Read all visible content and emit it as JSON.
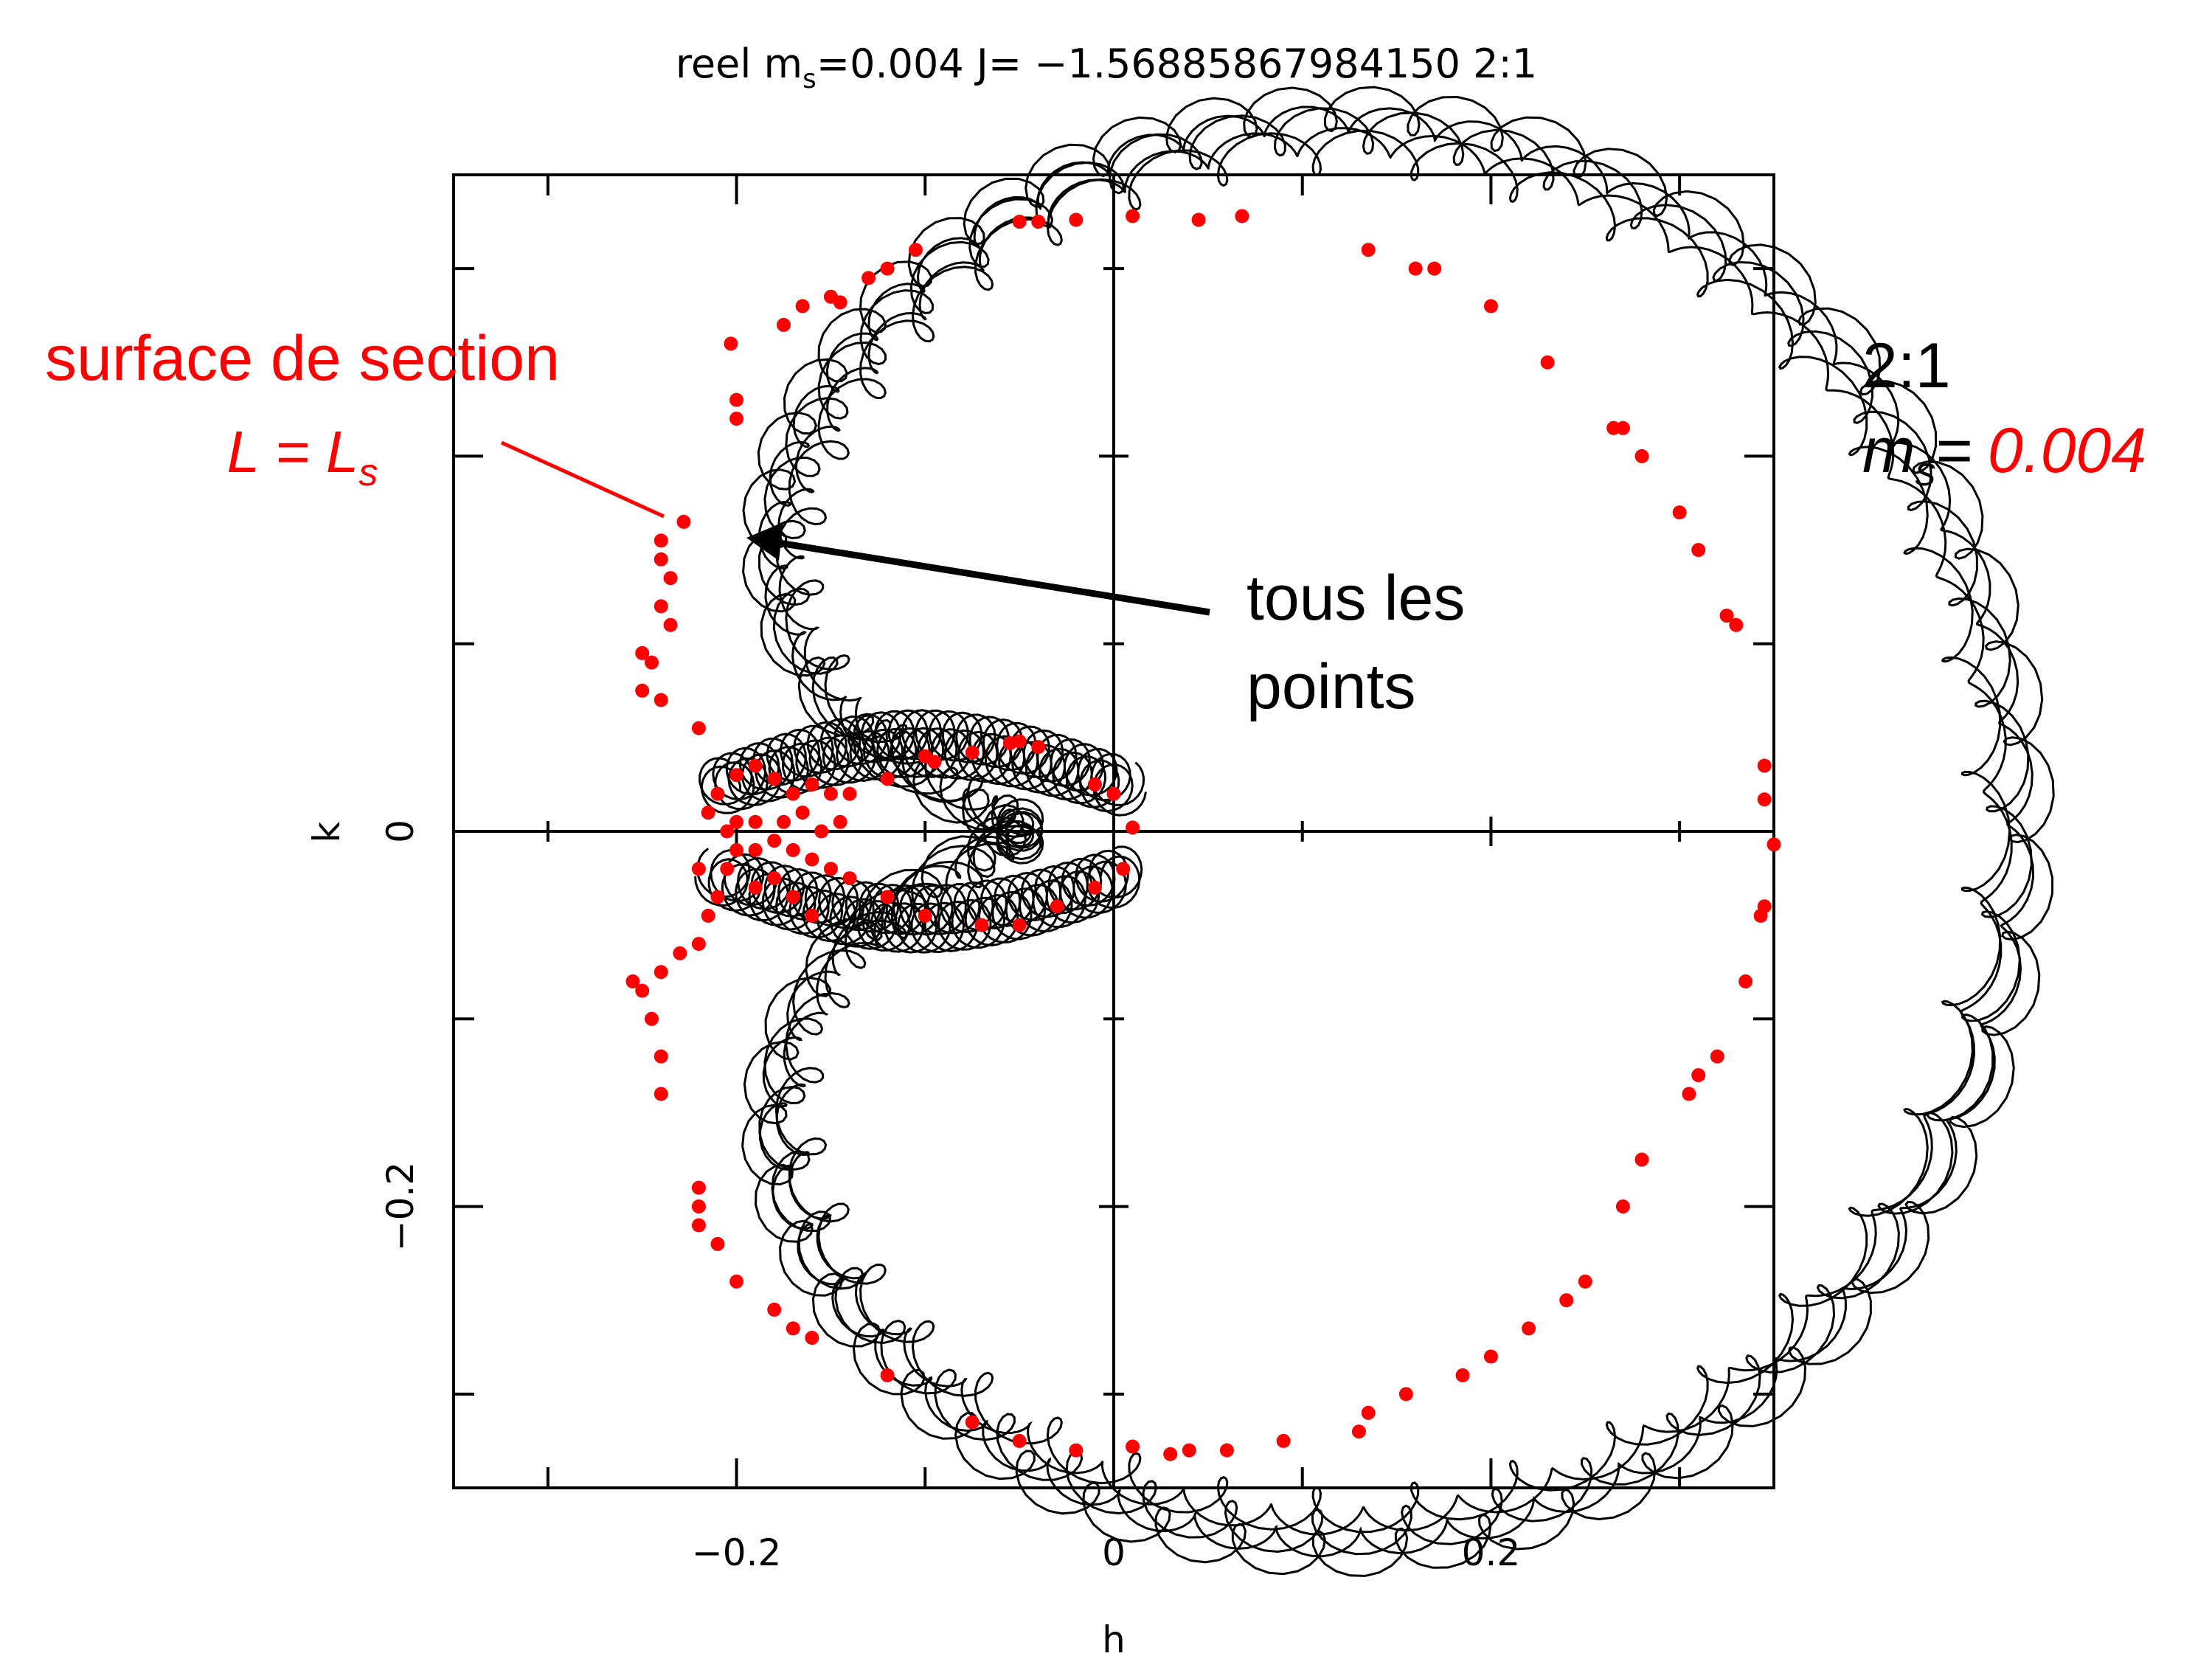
{
  "chart_data": {
    "type": "scatter",
    "title": "reel m_s=0.004 J= −1.56885867984150 2:1",
    "title_parts": {
      "prefix": "reel m",
      "sub": "s",
      "suffix": "=0.004 J= −1.56885867984150 2:1"
    },
    "xlabel": "h",
    "ylabel": "k",
    "xlim": [
      -0.35,
      0.35
    ],
    "ylim": [
      -0.35,
      0.35
    ],
    "x_ticks": [
      {
        "value": -0.2,
        "label": "−0.2"
      },
      {
        "value": 0,
        "label": "0"
      },
      {
        "value": 0.2,
        "label": "0.2"
      }
    ],
    "y_ticks": [
      {
        "value": -0.2,
        "label": "−0.2"
      },
      {
        "value": 0,
        "label": "0"
      }
    ],
    "minor_step": 0.1,
    "series": [
      {
        "kind": "trajectory-loops",
        "color": "#000000",
        "description_shape": "cardioid orbit with small epicyclic loops"
      },
      {
        "kind": "section-points",
        "color": "#ff0000",
        "points": [
          [
            -0.05,
            0.325
          ],
          [
            -0.04,
            0.325
          ],
          [
            -0.02,
            0.326
          ],
          [
            0.01,
            0.328
          ],
          [
            0.045,
            0.326
          ],
          [
            0.068,
            0.328
          ],
          [
            -0.105,
            0.31
          ],
          [
            -0.12,
            0.3
          ],
          [
            -0.15,
            0.285
          ],
          [
            -0.13,
            0.295
          ],
          [
            -0.145,
            0.282
          ],
          [
            -0.165,
            0.28
          ],
          [
            -0.175,
            0.27
          ],
          [
            -0.203,
            0.26
          ],
          [
            -0.2,
            0.23
          ],
          [
            -0.2,
            0.22
          ],
          [
            -0.228,
            0.165
          ],
          [
            -0.24,
            0.155
          ],
          [
            -0.24,
            0.145
          ],
          [
            -0.235,
            0.135
          ],
          [
            -0.24,
            0.12
          ],
          [
            -0.235,
            0.11
          ],
          [
            -0.25,
            0.095
          ],
          [
            -0.245,
            0.09
          ],
          [
            -0.24,
            0.07
          ],
          [
            -0.22,
            0.055
          ],
          [
            -0.25,
            0.075
          ],
          [
            0.135,
            0.31
          ],
          [
            0.16,
            0.3
          ],
          [
            0.17,
            0.3
          ],
          [
            0.2,
            0.28
          ],
          [
            0.23,
            0.25
          ],
          [
            0.265,
            0.215
          ],
          [
            0.27,
            0.215
          ],
          [
            0.28,
            0.2
          ],
          [
            0.3,
            0.17
          ],
          [
            0.31,
            0.15
          ],
          [
            0.325,
            0.115
          ],
          [
            0.33,
            0.11
          ],
          [
            0.345,
            0.035
          ],
          [
            0.345,
            0.017
          ],
          [
            0.35,
            -0.007
          ],
          [
            0.345,
            -0.04
          ],
          [
            0.343,
            -0.045
          ],
          [
            0.335,
            -0.08
          ],
          [
            0.32,
            -0.12
          ],
          [
            0.31,
            -0.13
          ],
          [
            0.305,
            -0.14
          ],
          [
            0.28,
            -0.175
          ],
          [
            0.27,
            -0.2
          ],
          [
            0.25,
            -0.24
          ],
          [
            0.24,
            -0.25
          ],
          [
            0.22,
            -0.265
          ],
          [
            0.2,
            -0.28
          ],
          [
            0.185,
            -0.29
          ],
          [
            0.155,
            -0.3
          ],
          [
            0.135,
            -0.31
          ],
          [
            0.13,
            -0.32
          ],
          [
            0.09,
            -0.325
          ],
          [
            0.06,
            -0.33
          ],
          [
            0.04,
            -0.33
          ],
          [
            0.03,
            -0.332
          ],
          [
            0.01,
            -0.328
          ],
          [
            -0.02,
            -0.33
          ],
          [
            -0.05,
            -0.325
          ],
          [
            -0.075,
            -0.315
          ],
          [
            -0.12,
            -0.29
          ],
          [
            -0.16,
            -0.27
          ],
          [
            -0.17,
            -0.265
          ],
          [
            -0.18,
            -0.255
          ],
          [
            -0.2,
            -0.24
          ],
          [
            -0.21,
            -0.22
          ],
          [
            -0.22,
            -0.21
          ],
          [
            -0.22,
            -0.2
          ],
          [
            -0.22,
            -0.19
          ],
          [
            -0.24,
            -0.14
          ],
          [
            -0.24,
            -0.12
          ],
          [
            -0.245,
            -0.1
          ],
          [
            -0.25,
            -0.085
          ],
          [
            -0.255,
            -0.08
          ],
          [
            -0.24,
            -0.075
          ],
          [
            -0.23,
            -0.065
          ],
          [
            -0.22,
            -0.06
          ],
          [
            -0.215,
            -0.045
          ],
          [
            -0.21,
            -0.035
          ],
          [
            -0.22,
            -0.02
          ],
          [
            -0.215,
            0.01
          ],
          [
            -0.21,
            0.02
          ],
          [
            -0.2,
            0.03
          ],
          [
            -0.19,
            0.035
          ],
          [
            -0.18,
            0.028
          ],
          [
            -0.17,
            0.02
          ],
          [
            -0.165,
            0.01
          ],
          [
            -0.16,
            0.025
          ],
          [
            -0.15,
            0.02
          ],
          [
            -0.14,
            0.02
          ],
          [
            -0.12,
            0.028
          ],
          [
            -0.1,
            0.04
          ],
          [
            -0.095,
            0.037
          ],
          [
            -0.075,
            0.042
          ],
          [
            -0.055,
            0.047
          ],
          [
            -0.05,
            0.048
          ],
          [
            -0.04,
            0.045
          ],
          [
            -0.01,
            0.025
          ],
          [
            0,
            0.02
          ],
          [
            0.01,
            0.002
          ],
          [
            0.005,
            -0.02
          ],
          [
            -0.01,
            -0.03
          ],
          [
            -0.03,
            -0.04
          ],
          [
            -0.05,
            -0.05
          ],
          [
            -0.07,
            -0.05
          ],
          [
            -0.1,
            -0.045
          ],
          [
            -0.12,
            -0.035
          ],
          [
            -0.14,
            -0.025
          ],
          [
            -0.15,
            -0.02
          ],
          [
            -0.16,
            -0.015
          ],
          [
            -0.17,
            -0.01
          ],
          [
            -0.18,
            -0.005
          ],
          [
            -0.19,
            -0.01
          ],
          [
            -0.2,
            -0.01
          ],
          [
            -0.205,
            -0.02
          ],
          [
            -0.19,
            -0.03
          ],
          [
            -0.18,
            -0.025
          ],
          [
            -0.17,
            -0.035
          ],
          [
            -0.16,
            -0.045
          ],
          [
            -0.2,
            0.005
          ],
          [
            -0.19,
            0.005
          ],
          [
            -0.175,
            0.005
          ],
          [
            -0.155,
            0.0
          ],
          [
            -0.145,
            0.005
          ],
          [
            -0.205,
            0.0
          ]
        ]
      }
    ]
  },
  "annotations": {
    "section_label": "surface de section",
    "section_formula_main": "L = L",
    "section_formula_sub": "s",
    "points_label_line1": "tous les",
    "points_label_line2": "points",
    "ratio_label": "2:1",
    "ms_symbol": "m",
    "ms_sub": "s",
    "ms_equals": "=",
    "ms_value": "0.004"
  },
  "colors": {
    "annotation_red": "#ff0000",
    "ink": "#000000",
    "background": "#ffffff"
  }
}
